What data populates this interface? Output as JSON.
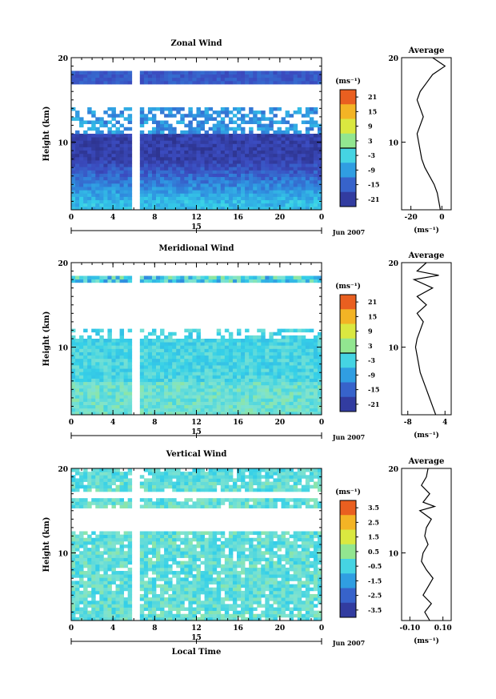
{
  "figure": {
    "xlabel": "Local Time",
    "date_axis": {
      "day": "15",
      "month_year": "Jun 2007"
    },
    "x_ticks": [
      "0",
      "4",
      "8",
      "12",
      "16",
      "20",
      "0"
    ],
    "units": "(ms⁻¹)"
  },
  "chart_data": [
    {
      "type": "heatmap",
      "title": "Zonal Wind",
      "ylabel": "Height (km)",
      "x": "local time (h)",
      "xlim": [
        0,
        24
      ],
      "ylim": [
        2,
        20
      ],
      "y_ticks": [
        "20",
        "10"
      ],
      "colorbar": {
        "ticks": [
          "21",
          "15",
          "9",
          "3",
          "-3",
          "-9",
          "-15",
          "-21"
        ],
        "range": [
          -24,
          24
        ],
        "zero_line": 0
      },
      "field_description": "mostly negative; about -20 between 6 and 12 km, about -6 near surface, empty band 14-18 km",
      "average_profile": {
        "title": "Average",
        "xlabel": "(ms⁻¹)",
        "x_ticks": [
          "-20",
          "0"
        ],
        "y_ticks": [
          "20",
          "10"
        ],
        "xlim": [
          -26,
          6
        ],
        "points": [
          [
            -1,
            2
          ],
          [
            -2,
            3
          ],
          [
            -3,
            4
          ],
          [
            -5,
            5
          ],
          [
            -8,
            6
          ],
          [
            -11,
            7
          ],
          [
            -13,
            8
          ],
          [
            -14,
            9
          ],
          [
            -15,
            10
          ],
          [
            -16,
            11
          ],
          [
            -14,
            12
          ],
          [
            -12,
            13
          ],
          [
            -14,
            14
          ],
          [
            -16,
            15
          ],
          [
            -14,
            16
          ],
          [
            -10,
            17
          ],
          [
            -6,
            18
          ],
          [
            2,
            19
          ],
          [
            -2,
            19.5
          ],
          [
            -6,
            20
          ]
        ]
      }
    },
    {
      "type": "heatmap",
      "title": "Meridional Wind",
      "ylabel": "Height (km)",
      "x": "local time (h)",
      "xlim": [
        0,
        24
      ],
      "ylim": [
        2,
        20
      ],
      "y_ticks": [
        "20",
        "10"
      ],
      "colorbar": {
        "ticks": [
          "21",
          "15",
          "9",
          "3",
          "-3",
          "-9",
          "-15",
          "-21"
        ],
        "range": [
          -24,
          24
        ],
        "zero_line": 0
      },
      "field_description": "weak, about -3 to 0 below 12 km with contoured patches near the surface",
      "average_profile": {
        "title": "Average",
        "xlabel": "(ms⁻¹)",
        "x_ticks": [
          "-8",
          "4"
        ],
        "y_ticks": [
          "20",
          "10"
        ],
        "xlim": [
          -10,
          6
        ],
        "points": [
          [
            1,
            2
          ],
          [
            0,
            3
          ],
          [
            -1,
            4
          ],
          [
            -2,
            5
          ],
          [
            -3,
            6
          ],
          [
            -4,
            7
          ],
          [
            -4.5,
            8
          ],
          [
            -5,
            9
          ],
          [
            -5.5,
            10
          ],
          [
            -5,
            11
          ],
          [
            -4,
            12
          ],
          [
            -3,
            13
          ],
          [
            -5,
            14
          ],
          [
            -2,
            15
          ],
          [
            -5,
            16
          ],
          [
            0,
            17
          ],
          [
            -6,
            18
          ],
          [
            2,
            18.5
          ],
          [
            -5,
            19
          ],
          [
            -2,
            20
          ]
        ]
      }
    },
    {
      "type": "heatmap",
      "title": "Vertical Wind",
      "ylabel": "Height (km)",
      "x": "local time (h)",
      "xlim": [
        0,
        24
      ],
      "ylim": [
        2,
        20
      ],
      "y_ticks": [
        "20",
        "10"
      ],
      "colorbar": {
        "ticks": [
          "3.5",
          "2.5",
          "1.5",
          "0.5",
          "-0.5",
          "-1.5",
          "-2.5",
          "-3.5"
        ],
        "range": [
          -4,
          4
        ],
        "zero_line": null
      },
      "field_description": "near zero everywhere, about -0.5 to 0.5",
      "average_profile": {
        "title": "Average",
        "xlabel": "(ms⁻¹)",
        "x_ticks": [
          "-0.10",
          "0.10"
        ],
        "y_ticks": [
          "20",
          "10"
        ],
        "xlim": [
          -0.15,
          0.15
        ],
        "points": [
          [
            0.02,
            2
          ],
          [
            -0.01,
            3
          ],
          [
            0.03,
            4
          ],
          [
            -0.02,
            5
          ],
          [
            0.01,
            6
          ],
          [
            0.04,
            7
          ],
          [
            0.0,
            8
          ],
          [
            -0.03,
            9
          ],
          [
            -0.02,
            10
          ],
          [
            0.01,
            11
          ],
          [
            -0.01,
            12
          ],
          [
            0.0,
            13
          ],
          [
            0.03,
            14
          ],
          [
            -0.04,
            15
          ],
          [
            0.05,
            15.5
          ],
          [
            -0.02,
            16
          ],
          [
            0.02,
            17
          ],
          [
            -0.03,
            18
          ],
          [
            0.0,
            19
          ],
          [
            0.01,
            20
          ]
        ]
      }
    }
  ]
}
